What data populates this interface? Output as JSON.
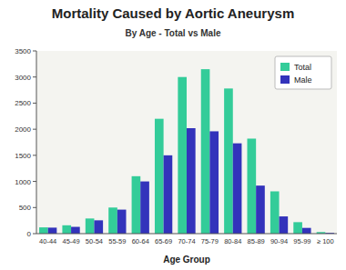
{
  "chart_data": {
    "type": "bar",
    "title": "Mortality Caused by Aortic Aneurysm",
    "subtitle": "By Age - Total vs Male",
    "xlabel": "Age Group",
    "categories": [
      "40-44",
      "45-49",
      "50-54",
      "55-59",
      "60-64",
      "65-69",
      "70-74",
      "75-79",
      "80-84",
      "85-89",
      "90-94",
      "95-99",
      "≥ 100"
    ],
    "series": [
      {
        "name": "Total",
        "color": "#33CC99",
        "values": [
          120,
          160,
          290,
          500,
          1100,
          2200,
          3000,
          3150,
          2780,
          1820,
          810,
          220,
          30
        ]
      },
      {
        "name": "Male",
        "color": "#3333BB",
        "values": [
          115,
          130,
          255,
          460,
          1000,
          1500,
          2020,
          1960,
          1730,
          920,
          330,
          110,
          15
        ]
      }
    ],
    "ylim": [
      0,
      3500
    ],
    "yticks": [
      0,
      500,
      1000,
      1500,
      2000,
      2500,
      3000,
      3500
    ],
    "grid": false,
    "legend": "upper right"
  }
}
